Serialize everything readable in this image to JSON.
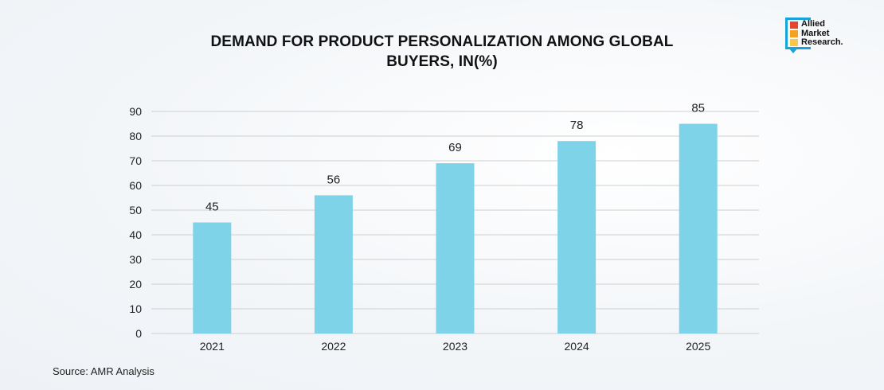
{
  "title_lines": [
    "DEMAND FOR PRODUCT PERSONALIZATION AMONG GLOBAL",
    "BUYERS, IN(%)"
  ],
  "source": "Source: AMR Analysis",
  "logo": {
    "lines": [
      "Allied",
      "Market",
      "Research."
    ],
    "colors": [
      "#e8452c",
      "#f6a21e",
      "#f7c948",
      "#1aa3d9"
    ]
  },
  "chart_data": {
    "type": "bar",
    "title": "DEMAND FOR PRODUCT PERSONALIZATION AMONG GLOBAL BUYERS, IN(%)",
    "categories": [
      "2021",
      "2022",
      "2023",
      "2024",
      "2025"
    ],
    "values": [
      45,
      56,
      69,
      78,
      85
    ],
    "xlabel": "",
    "ylabel": "",
    "ylim": [
      0,
      90
    ],
    "yticks": [
      0,
      10,
      20,
      30,
      40,
      50,
      60,
      70,
      80,
      90
    ],
    "grid": true,
    "legend": "none",
    "bar_color": "#7fd3e8",
    "grid_color": "#cfcfcf"
  }
}
